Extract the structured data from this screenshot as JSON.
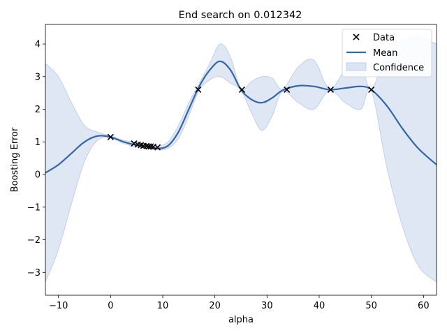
{
  "chart_data": {
    "type": "line",
    "title": "End search on 0.012342",
    "xlabel": "alpha",
    "ylabel": "Boosting Error",
    "xlim": [
      -12.5,
      62.5
    ],
    "ylim": [
      -3.7,
      4.6
    ],
    "xticks": [
      -10,
      0,
      10,
      20,
      30,
      40,
      50,
      60
    ],
    "xtick_labels": [
      "−10",
      "0",
      "10",
      "20",
      "30",
      "40",
      "50",
      "60"
    ],
    "yticks": [
      -3,
      -2,
      -1,
      0,
      1,
      2,
      3,
      4
    ],
    "ytick_labels": [
      "−3",
      "−2",
      "−1",
      "0",
      "1",
      "2",
      "3",
      "4"
    ],
    "grid": false,
    "legend_position": "top-right",
    "colors": {
      "mean": "#3465a4",
      "confidence": "#dbe4f4",
      "confidence_edge": "#b8c8e6",
      "data": "#000000"
    },
    "legend": [
      {
        "key": "data",
        "label": "Data"
      },
      {
        "key": "mean",
        "label": "Mean"
      },
      {
        "key": "confidence",
        "label": "Confidence"
      }
    ],
    "data_points": {
      "x": [
        0,
        4.5,
        5.2,
        5.8,
        6.3,
        6.9,
        7.3,
        7.7,
        8.2,
        9.0,
        16.8,
        25.2,
        33.8,
        42.2,
        50.0
      ],
      "y": [
        1.15,
        0.95,
        0.92,
        0.9,
        0.88,
        0.87,
        0.86,
        0.86,
        0.85,
        0.83,
        2.6,
        2.6,
        2.6,
        2.6,
        2.6
      ]
    },
    "mean": {
      "x": [
        -12.5,
        -10,
        -7.5,
        -5,
        -2.5,
        0,
        2.5,
        5,
        7.5,
        9,
        11,
        13,
        15,
        17,
        19,
        21,
        23,
        25,
        27,
        29,
        31,
        33,
        36,
        39,
        42,
        45,
        48,
        50,
        53,
        56,
        59,
        62.5
      ],
      "y": [
        0.05,
        0.3,
        0.65,
        1.0,
        1.18,
        1.15,
        1.0,
        0.9,
        0.85,
        0.8,
        0.88,
        1.3,
        2.0,
        2.7,
        3.2,
        3.47,
        3.2,
        2.6,
        2.3,
        2.2,
        2.35,
        2.58,
        2.72,
        2.7,
        2.6,
        2.65,
        2.7,
        2.6,
        2.1,
        1.4,
        0.8,
        0.3
      ]
    },
    "confidence": {
      "x": [
        -12.5,
        -10,
        -7.5,
        -5,
        -2.5,
        0,
        2.5,
        5,
        7.5,
        9,
        11,
        13,
        15,
        17,
        19,
        21,
        23,
        25,
        27,
        29,
        31,
        33,
        36,
        39,
        42,
        45,
        48,
        50,
        53,
        56,
        59,
        62.5
      ],
      "upper": [
        3.4,
        3.0,
        2.2,
        1.5,
        1.3,
        1.18,
        1.05,
        0.98,
        0.92,
        0.87,
        1.0,
        1.5,
        2.2,
        2.8,
        3.4,
        4.0,
        3.6,
        2.62,
        2.85,
        3.0,
        2.95,
        2.62,
        3.3,
        3.5,
        2.62,
        3.2,
        3.3,
        2.62,
        3.7,
        4.1,
        4.2,
        4.0
      ],
      "lower": [
        -3.3,
        -2.3,
        -0.9,
        0.4,
        1.05,
        1.12,
        0.95,
        0.85,
        0.8,
        0.76,
        0.8,
        1.1,
        1.8,
        2.58,
        2.9,
        3.0,
        2.8,
        2.58,
        1.9,
        1.35,
        1.8,
        2.55,
        2.2,
        2.0,
        2.58,
        2.2,
        2.0,
        2.58,
        0.2,
        -1.6,
        -2.8,
        -3.3
      ]
    }
  }
}
